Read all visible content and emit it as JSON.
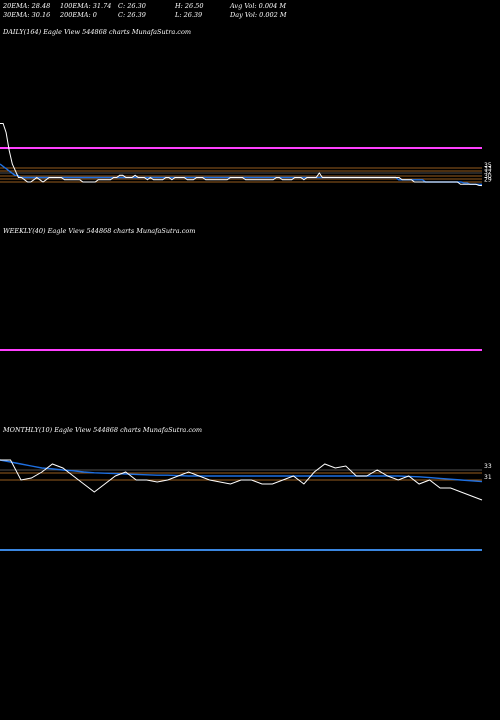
{
  "header": {
    "ema20": "20EMA: 28.48",
    "ema30": "30EMA: 30.16",
    "ema100": "100EMA: 31.74",
    "ema200": "200EMA: 0",
    "close1": "C: 26.30",
    "close2": "C: 26.39",
    "high": "H: 26.50",
    "low": "L: 26.39",
    "avg_vol": "Avg Vol: 0.004  M",
    "day_vol": "Day Vol: 0.002  M"
  },
  "panels": {
    "daily_label": "DAILY(164) Eagle  View  544868  charts MunafaSutra.com",
    "weekly_label": "WEEKLY(40) Eagle  View  544868  charts MunafaSutra.com",
    "monthly_label": "MONTHLY(10) Eagle  View  544868  charts MunafaSutra.com"
  },
  "colors": {
    "price": "#ffffff",
    "ema": "#1e6fe0",
    "band": "#ff40ff",
    "orange": "#c87a28",
    "blue_band": "#3a86e0"
  },
  "chart_data": [
    {
      "type": "line",
      "panel": "daily",
      "title": "DAILY(164) Eagle  View  544868  charts MunafaSutra.com",
      "ylim": [
        20,
        60
      ],
      "series": [
        {
          "values": [
            54,
            54,
            50,
            42,
            36,
            33,
            30,
            30,
            29,
            28,
            28,
            29,
            30,
            29,
            28,
            29,
            30,
            30,
            30,
            30,
            30,
            29,
            29,
            29,
            29,
            29,
            29,
            28,
            28,
            28,
            28,
            28,
            29,
            29,
            29,
            29,
            29,
            30,
            30,
            31,
            31,
            30,
            30,
            30,
            31,
            30,
            30,
            30,
            29,
            30,
            29,
            29,
            29,
            29,
            30,
            30,
            29,
            30,
            30,
            30,
            30,
            29,
            29,
            29,
            30,
            30,
            30,
            29,
            29,
            29,
            29,
            29,
            29,
            29,
            29,
            30,
            30,
            30,
            30,
            30,
            29,
            29,
            29,
            29,
            29,
            29,
            29,
            29,
            29,
            29,
            30,
            30,
            29,
            29,
            29,
            29,
            30,
            30,
            30,
            29,
            30,
            30,
            30,
            30,
            32,
            30,
            30,
            30,
            30,
            30,
            30,
            30,
            30,
            30,
            30,
            30,
            30,
            30,
            30,
            30,
            30,
            30,
            30,
            30,
            30,
            30,
            30,
            30,
            30,
            30,
            30,
            29,
            29,
            29,
            29,
            28,
            28,
            28,
            28,
            28,
            28,
            28,
            28,
            28,
            28,
            28,
            28,
            28,
            28,
            28,
            27,
            27,
            27,
            27,
            27,
            27,
            26.5,
            26.4
          ]
        },
        {
          "values": [
            36,
            35,
            34,
            33,
            32,
            31,
            31,
            30,
            30,
            30,
            30,
            30,
            30,
            30,
            30,
            30,
            30,
            30,
            30,
            30,
            30,
            30,
            30,
            30,
            30,
            30,
            30,
            30,
            30,
            30,
            30,
            30,
            30,
            30,
            30,
            30,
            30,
            30,
            30,
            30,
            30,
            30,
            30,
            30,
            30,
            30,
            30,
            30,
            30,
            30,
            30,
            30,
            30,
            30,
            30,
            30,
            30,
            30,
            30,
            30,
            30,
            30,
            30,
            30,
            30,
            30,
            30,
            30,
            30,
            30,
            30,
            30,
            30,
            30,
            30,
            30,
            30,
            30,
            30,
            30,
            30,
            30,
            30,
            30,
            30,
            30,
            30,
            30,
            30,
            30,
            30,
            30,
            30,
            30,
            30,
            30,
            30,
            30,
            30,
            30,
            30,
            30,
            30,
            30,
            30,
            30,
            30,
            30,
            30,
            30,
            30,
            30,
            30,
            30,
            30,
            30,
            30,
            30,
            30,
            30,
            30,
            30,
            30,
            30,
            30,
            30,
            30,
            30,
            30,
            30,
            30,
            30,
            30,
            30,
            29,
            29,
            29,
            29,
            29,
            29,
            29,
            29,
            29,
            28,
            28,
            28,
            28,
            28,
            28,
            28,
            28,
            28,
            28,
            28,
            28,
            28,
            27.5,
            27.5,
            27,
            27,
            27,
            27,
            27
          ]
        }
      ],
      "ticks": [
        "35",
        "33",
        "32",
        "30",
        "29"
      ]
    },
    {
      "type": "line",
      "panel": "weekly",
      "title": "WEEKLY(40) Eagle  View  544868  charts MunafaSutra.com"
    },
    {
      "type": "line",
      "panel": "monthly",
      "title": "MONTHLY(10) Eagle  View  544868  charts MunafaSutra.com",
      "ylim": [
        20,
        40
      ],
      "series": [
        {
          "values": [
            35,
            35,
            30,
            30.5,
            32,
            34,
            33,
            31,
            29,
            27,
            29,
            31,
            32,
            30,
            30,
            29.5,
            30,
            31,
            32,
            31,
            30,
            29.5,
            29,
            30,
            30,
            29,
            29,
            30,
            31,
            29,
            32,
            34,
            33,
            33.5,
            31,
            31,
            32.5,
            31,
            30,
            31,
            29,
            30,
            28,
            28,
            27,
            26,
            25
          ]
        },
        {
          "values": [
            35,
            34.5,
            34,
            33.5,
            33,
            32.8,
            32.5,
            32.3,
            32,
            31.8,
            31.7,
            31.6,
            31.5,
            31.4,
            31.3,
            31.2,
            31.2,
            31.1,
            31,
            31,
            31,
            31,
            31,
            31,
            31,
            31,
            31,
            31,
            31,
            31,
            31,
            31,
            31,
            31,
            31,
            31,
            31,
            31,
            31,
            30.9,
            30.8,
            30.6,
            30.4,
            30.2,
            30,
            29.8,
            29.6
          ]
        }
      ],
      "ticks": [
        "33",
        "31"
      ]
    }
  ]
}
